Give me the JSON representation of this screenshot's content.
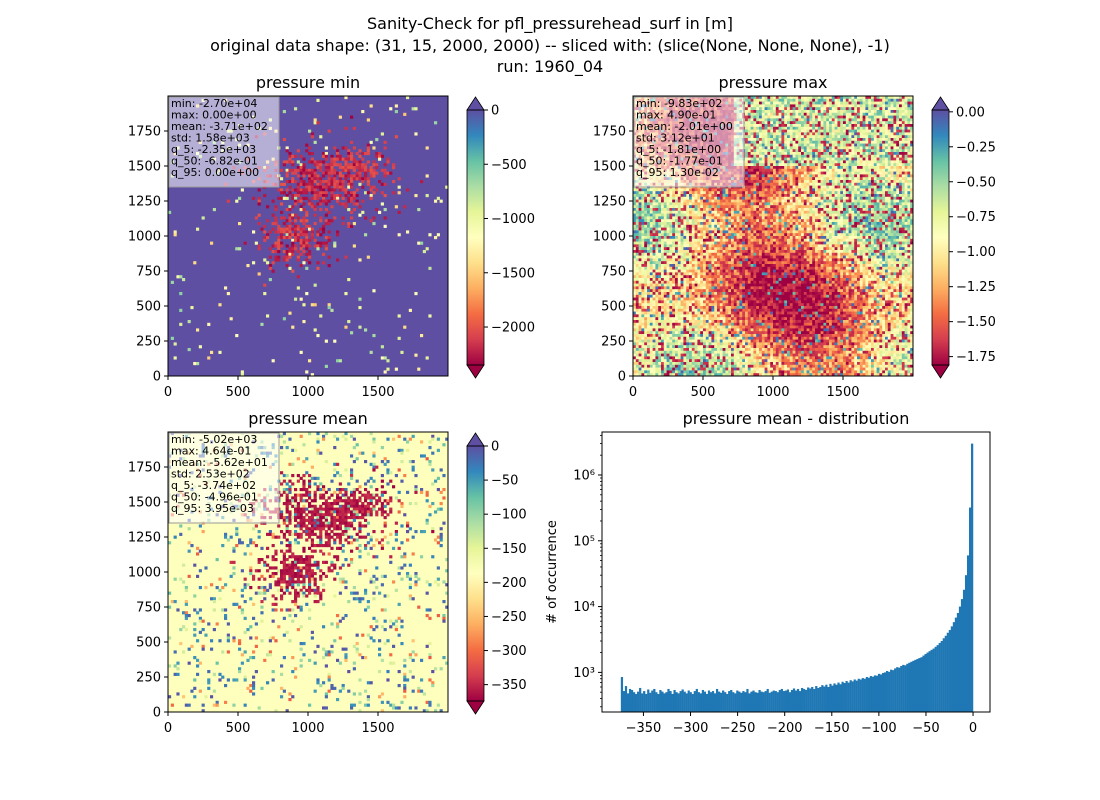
{
  "figure": {
    "title_lines": [
      "Sanity-Check for pfl_pressurehead_surf in [m]",
      "original data shape: (31, 15, 2000, 2000) -- sliced with: (slice(None, None, None), -1)",
      "run: 1960_04"
    ]
  },
  "chart_data": [
    {
      "type": "heatmap",
      "title": "pressure min",
      "x_ticks": [
        "0",
        "500",
        "1000",
        "1500"
      ],
      "y_ticks": [
        "0",
        "250",
        "500",
        "750",
        "1000",
        "1250",
        "1500",
        "1750"
      ],
      "xlim": [
        0,
        2000
      ],
      "ylim": [
        0,
        2000
      ],
      "colorbar": {
        "cmap": "Spectral",
        "range": [
          -2350,
          0
        ],
        "extend": "both",
        "ticks": [
          "0",
          "−500",
          "−1000",
          "−1500",
          "−2000"
        ],
        "tick_values": [
          0,
          -500,
          -1000,
          -1500,
          -2000
        ]
      },
      "stats": [
        "min: -2.70e+04",
        "max: 0.00e+00",
        "mean: -3.71e+02",
        "std: 1.58e+03",
        "q_5: -2.35e+03",
        "q_50: -6.82e-01",
        "q_95: 0.00e+00"
      ],
      "dominant_color": "#5e4fa2"
    },
    {
      "type": "heatmap",
      "title": "pressure max",
      "x_ticks": [
        "0",
        "500",
        "1000",
        "1500"
      ],
      "y_ticks": [
        "0",
        "250",
        "500",
        "750",
        "1000",
        "1250",
        "1500",
        "1750"
      ],
      "xlim": [
        0,
        2000
      ],
      "ylim": [
        0,
        2000
      ],
      "colorbar": {
        "cmap": "Spectral",
        "range": [
          -1.81,
          0.013
        ],
        "extend": "both",
        "ticks": [
          "0.00",
          "−0.25",
          "−0.50",
          "−0.75",
          "−1.00",
          "−1.25",
          "−1.50",
          "−1.75"
        ],
        "tick_values": [
          0,
          -0.25,
          -0.5,
          -0.75,
          -1.0,
          -1.25,
          -1.5,
          -1.75
        ]
      },
      "stats": [
        "min: -9.83e+02",
        "max: 4.90e-01",
        "mean: -2.01e+00",
        "std: 3.12e+01",
        "q_5: -1.81e+00",
        "q_50: -1.77e-01",
        "q_95: 1.30e-02"
      ]
    },
    {
      "type": "heatmap",
      "title": "pressure mean",
      "x_ticks": [
        "0",
        "500",
        "1000",
        "1500"
      ],
      "y_ticks": [
        "0",
        "250",
        "500",
        "750",
        "1000",
        "1250",
        "1500",
        "1750"
      ],
      "xlim": [
        0,
        2000
      ],
      "ylim": [
        0,
        2000
      ],
      "colorbar": {
        "cmap": "Spectral",
        "range": [
          -374,
          0.004
        ],
        "extend": "both",
        "ticks": [
          "0",
          "−50",
          "−100",
          "−150",
          "−200",
          "−250",
          "−300",
          "−350"
        ],
        "tick_values": [
          0,
          -50,
          -100,
          -150,
          -200,
          -250,
          -300,
          -350
        ]
      },
      "stats": [
        "min: -5.02e+03",
        "max: 4.64e-01",
        "mean: -5.62e+01",
        "std: 2.53e+02",
        "q_5: -3.74e+02",
        "q_50: -4.96e-01",
        "q_95: 3.95e-03"
      ],
      "dominant_color": "#fefebd"
    },
    {
      "type": "bar",
      "title": "pressure mean - distribution",
      "ylabel": "# of occurrence",
      "xlabel": "",
      "yscale": "log",
      "xlim": [
        -394,
        18
      ],
      "ylim": [
        250,
        4500000
      ],
      "x_ticks": [
        "−350",
        "−300",
        "−250",
        "−200",
        "−150",
        "−100",
        "−50",
        "0"
      ],
      "x_tick_values": [
        -350,
        -300,
        -250,
        -200,
        -150,
        -100,
        -50,
        0
      ],
      "y_ticks": [
        "10³",
        "10⁴",
        "10⁵",
        "10⁶"
      ],
      "y_tick_values": [
        1000,
        10000,
        100000,
        1000000
      ],
      "bin_range": [
        -374,
        0
      ],
      "color": "#1f77b4",
      "counts": [
        850,
        520,
        620,
        480,
        560,
        540,
        500,
        470,
        510,
        580,
        480,
        520,
        470,
        550,
        490,
        530,
        560,
        500,
        470,
        540,
        510,
        480,
        500,
        560,
        520,
        470,
        540,
        500,
        480,
        520,
        550,
        510,
        480,
        530,
        500,
        470,
        520,
        560,
        500,
        480,
        540,
        510,
        470,
        530,
        500,
        520,
        480,
        560,
        510,
        490,
        530,
        500,
        470,
        520,
        540,
        500,
        480,
        530,
        510,
        490,
        520,
        500,
        560,
        480,
        510,
        530,
        500,
        490,
        540,
        510,
        500,
        520,
        560,
        490,
        510,
        530,
        520,
        500,
        540,
        560,
        520,
        530,
        550,
        500,
        540,
        570,
        530,
        560,
        520,
        580,
        560,
        540,
        590,
        570,
        600,
        560,
        620,
        580,
        600,
        640,
        610,
        650,
        600,
        670,
        630,
        680,
        650,
        700,
        660,
        720,
        690,
        740,
        700,
        760,
        730,
        780,
        750,
        800,
        780,
        820,
        800,
        850,
        830,
        880,
        860,
        900,
        890,
        950,
        930,
        980,
        1000,
        1050,
        1020,
        1100,
        1080,
        1150,
        1200,
        1180,
        1250,
        1300,
        1280,
        1350,
        1400,
        1450,
        1500,
        1550,
        1600,
        1650,
        1700,
        1800,
        1900,
        2000,
        2100,
        2200,
        2300,
        2450,
        2600,
        2800,
        3000,
        3300,
        3600,
        4000,
        4400,
        5000,
        5800,
        6800,
        8000,
        10000,
        13000,
        18000,
        30000,
        60000,
        320000,
        3000000
      ]
    }
  ]
}
